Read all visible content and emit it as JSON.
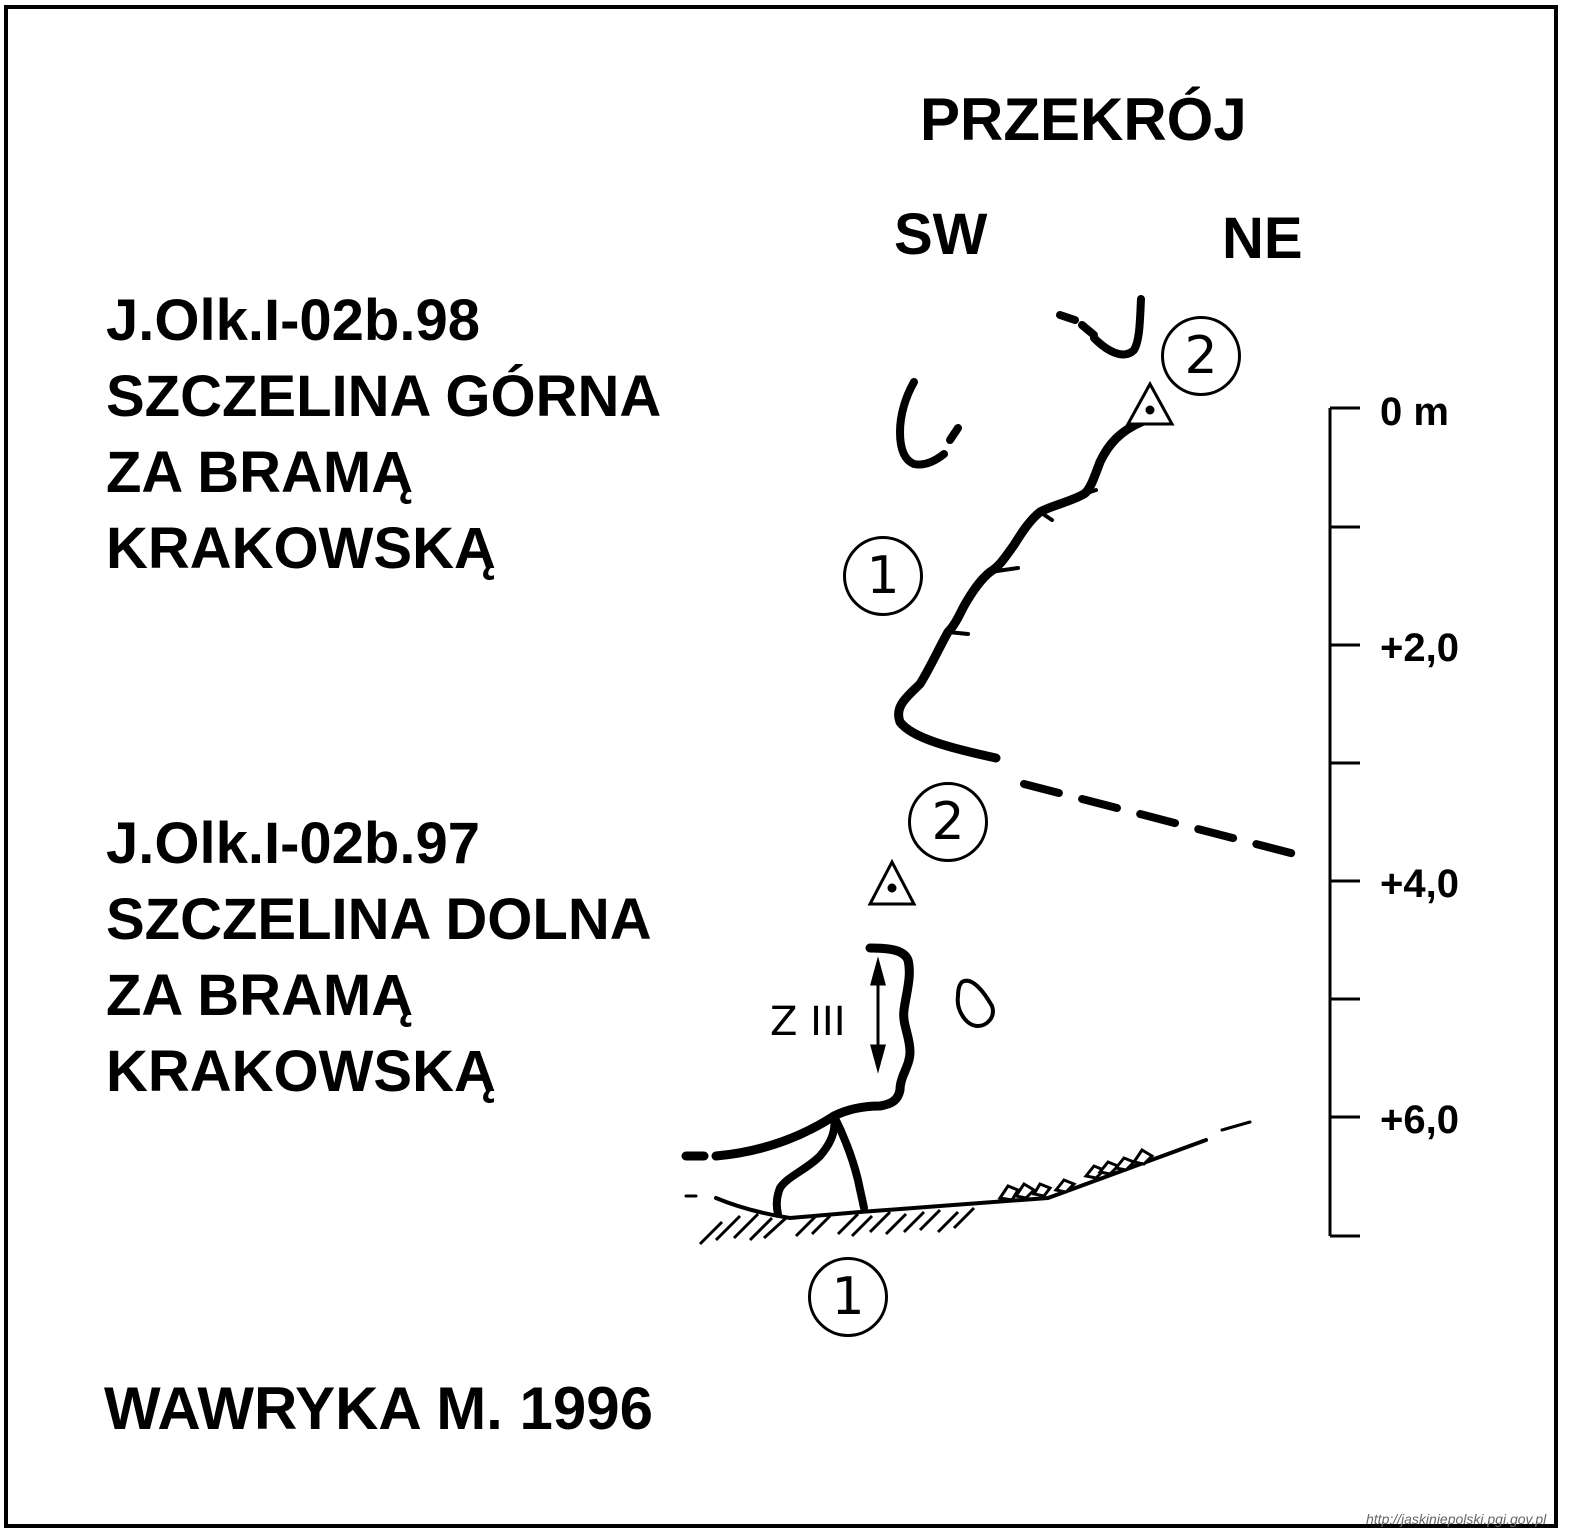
{
  "title": "PRZEKRÓJ",
  "directions": {
    "left": "SW",
    "right": "NE"
  },
  "caves": [
    {
      "code": "J.Olk.I-02b.98",
      "name_lines": [
        "SZCZELINA GÓRNA",
        "ZA BRAMĄ",
        "KRAKOWSKĄ"
      ]
    },
    {
      "code": "J.Olk.I-02b.97",
      "name_lines": [
        "SZCZELINA DOLNA",
        "ZA BRAMĄ",
        "KRAKOWSKĄ"
      ]
    }
  ],
  "scale": {
    "labels": [
      "0 m",
      "+2,0",
      "+4,0",
      "+6,0"
    ]
  },
  "zone_label": "Z III",
  "markers": {
    "one": "1",
    "two": "2"
  },
  "author": "WAWRYKA M. 1996",
  "website": "http://jaskiniepolski.pgi.gov.pl",
  "colors": {
    "ink": "#000000",
    "paper": "#ffffff"
  },
  "icons": [
    "survey-point-icon",
    "rock-block-icon",
    "height-arrow-icon",
    "hatched-bedrock-icon"
  ]
}
